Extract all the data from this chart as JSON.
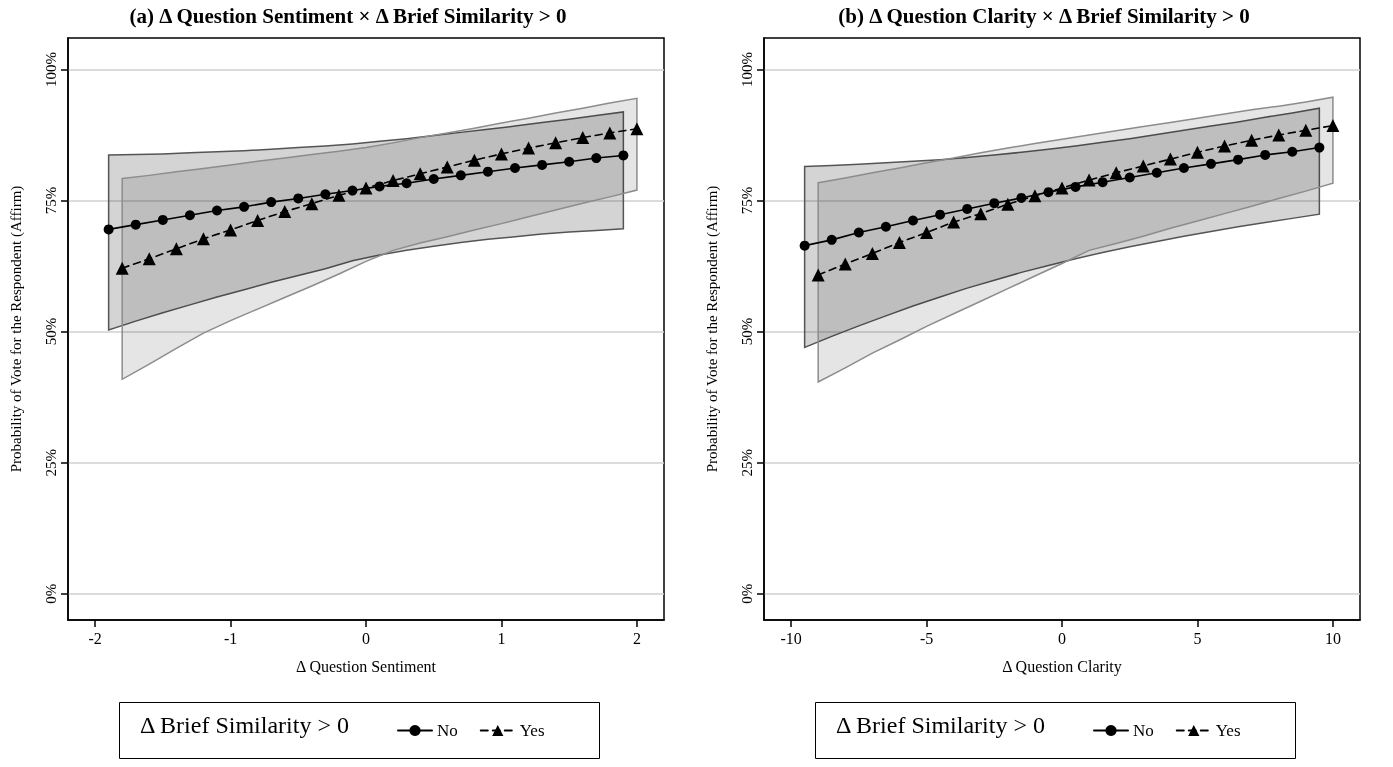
{
  "chart_data": [
    {
      "type": "line",
      "title": "(a) Δ Question Sentiment × Δ Brief Similarity > 0",
      "xlabel": "Δ Question Sentiment",
      "ylabel": "Probability of Vote for the Respondent (Affirm)",
      "legend_title": "Δ Brief Similarity > 0",
      "legend": "bottom",
      "grid": "y",
      "xlim": [
        -2.2,
        2.2
      ],
      "xticks": [
        -2,
        -1,
        0,
        1,
        2
      ],
      "ylim": [
        -5,
        106
      ],
      "yticks": [
        {
          "value": 0,
          "label": "0%"
        },
        {
          "value": 25,
          "label": "25%"
        },
        {
          "value": 50,
          "label": "50%"
        },
        {
          "value": 75,
          "label": "75%"
        },
        {
          "value": 100,
          "label": "100%"
        }
      ],
      "series": [
        {
          "name": "No",
          "color": "#000000",
          "marker": "circle",
          "line_style": "solid",
          "x": [
            -1.9,
            -1.7,
            -1.5,
            -1.3,
            -1.1,
            -0.9,
            -0.7,
            -0.5,
            -0.3,
            -0.1,
            0.1,
            0.3,
            0.5,
            0.7,
            0.9,
            1.1,
            1.3,
            1.5,
            1.7,
            1.9
          ],
          "values": [
            69.5,
            70.4,
            71.3,
            72.2,
            73.1,
            73.8,
            74.7,
            75.4,
            76.2,
            76.9,
            77.7,
            78.3,
            79.1,
            79.8,
            80.5,
            81.2,
            81.8,
            82.4,
            83.1,
            83.6
          ],
          "lower": [
            50.3,
            52.0,
            53.6,
            55.1,
            56.6,
            58.0,
            59.4,
            60.7,
            62.0,
            63.5,
            64.6,
            65.5,
            66.3,
            67.0,
            67.6,
            68.1,
            68.6,
            69.0,
            69.3,
            69.6
          ],
          "upper": [
            83.7,
            83.8,
            83.9,
            84.1,
            84.3,
            84.5,
            84.8,
            85.1,
            85.4,
            85.8,
            86.3,
            86.8,
            87.4,
            88.0,
            88.6,
            89.2,
            89.9,
            90.5,
            91.2,
            91.9
          ]
        },
        {
          "name": "Yes",
          "color": "#000000",
          "marker": "triangle",
          "line_style": "dashed",
          "x": [
            -1.8,
            -1.6,
            -1.4,
            -1.2,
            -1.0,
            -0.8,
            -0.6,
            -0.4,
            -0.2,
            0.0,
            0.2,
            0.4,
            0.6,
            0.8,
            1.0,
            1.2,
            1.4,
            1.6,
            1.8,
            2.0
          ],
          "values": [
            62.1,
            63.9,
            65.8,
            67.7,
            69.4,
            71.2,
            72.9,
            74.4,
            76.0,
            77.4,
            78.8,
            80.1,
            81.4,
            82.7,
            83.9,
            85.0,
            86.0,
            87.0,
            87.9,
            88.7
          ],
          "lower": [
            40.9,
            43.8,
            46.8,
            49.7,
            52.1,
            54.3,
            56.5,
            58.7,
            61.0,
            63.4,
            65.5,
            66.9,
            68.1,
            69.4,
            70.6,
            71.9,
            73.2,
            74.5,
            75.7,
            77.0
          ],
          "upper": [
            79.2,
            79.8,
            80.5,
            81.1,
            81.8,
            82.5,
            83.1,
            83.8,
            84.4,
            85.1,
            86.0,
            87.0,
            87.9,
            88.8,
            89.8,
            90.7,
            91.7,
            92.6,
            93.6,
            94.5
          ]
        }
      ]
    },
    {
      "type": "line",
      "title": "(b) Δ Question Clarity × Δ Brief Similarity > 0",
      "xlabel": "Δ Question Clarity",
      "ylabel": "Probability of Vote for the Respondent (Affirm)",
      "legend_title": "Δ Brief Similarity > 0",
      "legend": "bottom",
      "grid": "y",
      "xlim": [
        -11,
        11
      ],
      "xticks": [
        {
          "value": -10,
          "label": "-10"
        },
        {
          "value": -5,
          "label": "-5"
        },
        0,
        5,
        10
      ],
      "ylim": [
        -5,
        106
      ],
      "yticks": [
        {
          "value": 0,
          "label": "0%"
        },
        {
          "value": 25,
          "label": "25%"
        },
        {
          "value": 50,
          "label": "50%"
        },
        {
          "value": 75,
          "label": "75%"
        },
        {
          "value": 100,
          "label": "100%"
        }
      ],
      "series": [
        {
          "name": "No",
          "color": "#000000",
          "marker": "circle",
          "line_style": "solid",
          "x": [
            -9.5,
            -8.5,
            -7.5,
            -6.5,
            -5.5,
            -4.5,
            -3.5,
            -2.5,
            -1.5,
            -0.5,
            0.5,
            1.5,
            2.5,
            3.5,
            4.5,
            5.5,
            6.5,
            7.5,
            8.5,
            9.5
          ],
          "values": [
            66.4,
            67.5,
            68.9,
            70.0,
            71.2,
            72.3,
            73.4,
            74.5,
            75.5,
            76.6,
            77.6,
            78.5,
            79.4,
            80.3,
            81.2,
            82.0,
            82.8,
            83.7,
            84.3,
            85.1
          ],
          "lower": [
            47.0,
            49.1,
            51.1,
            53.0,
            54.9,
            56.6,
            58.3,
            59.8,
            61.3,
            62.6,
            63.9,
            65.1,
            66.2,
            67.2,
            68.2,
            69.1,
            70.0,
            70.8,
            71.6,
            72.4
          ],
          "upper": [
            81.5,
            81.7,
            81.9,
            82.2,
            82.5,
            82.8,
            83.2,
            83.7,
            84.2,
            84.8,
            85.4,
            86.1,
            86.8,
            87.6,
            88.4,
            89.2,
            90.0,
            90.9,
            91.7,
            92.6
          ]
        },
        {
          "name": "Yes",
          "color": "#000000",
          "marker": "triangle",
          "line_style": "dashed",
          "x": [
            -9,
            -8,
            -7,
            -6,
            -5,
            -4,
            -3,
            -2,
            -1,
            0,
            1,
            2,
            3,
            4,
            5,
            6,
            7,
            8,
            9,
            10
          ],
          "values": [
            60.8,
            62.9,
            64.9,
            67.0,
            68.9,
            70.9,
            72.5,
            74.3,
            75.9,
            77.4,
            78.9,
            80.3,
            81.6,
            82.9,
            84.2,
            85.4,
            86.5,
            87.5,
            88.4,
            89.3
          ],
          "lower": [
            40.4,
            43.1,
            45.9,
            48.4,
            51.0,
            53.4,
            55.8,
            58.2,
            60.6,
            63.0,
            65.5,
            66.8,
            68.2,
            69.7,
            71.1,
            72.5,
            73.9,
            75.4,
            76.8,
            78.3
          ],
          "upper": [
            78.4,
            79.3,
            80.3,
            81.2,
            82.2,
            83.1,
            84.1,
            85.0,
            85.9,
            86.7,
            87.5,
            88.3,
            89.1,
            89.9,
            90.7,
            91.5,
            92.3,
            93.0,
            93.8,
            94.7
          ]
        }
      ]
    }
  ]
}
